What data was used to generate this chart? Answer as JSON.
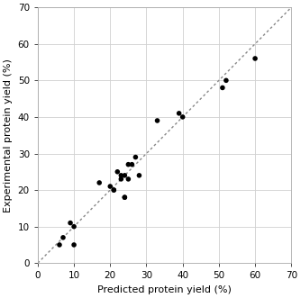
{
  "x_points": [
    6,
    7,
    9,
    10,
    10,
    17,
    20,
    21,
    21,
    22,
    23,
    23,
    24,
    24,
    24,
    25,
    25,
    26,
    27,
    28,
    33,
    39,
    40,
    51,
    52,
    60
  ],
  "y_points": [
    5,
    7,
    11,
    10,
    5,
    22,
    21,
    20,
    20,
    25,
    23,
    24,
    24,
    18,
    18,
    27,
    23,
    27,
    29,
    24,
    39,
    41,
    40,
    48,
    50,
    56
  ],
  "xlabel": "Predicted protein yield (%)",
  "ylabel": "Experimental protein yield (%)",
  "xlim": [
    0,
    70
  ],
  "ylim": [
    0,
    70
  ],
  "xticks": [
    0,
    10,
    20,
    30,
    40,
    50,
    60,
    70
  ],
  "yticks": [
    0,
    10,
    20,
    30,
    40,
    50,
    60,
    70
  ],
  "marker_color": "#000000",
  "marker_size": 4,
  "line_color": "#888888",
  "grid_color": "#d0d0d0",
  "background_color": "#ffffff",
  "label_fontsize": 8,
  "tick_fontsize": 7.5
}
